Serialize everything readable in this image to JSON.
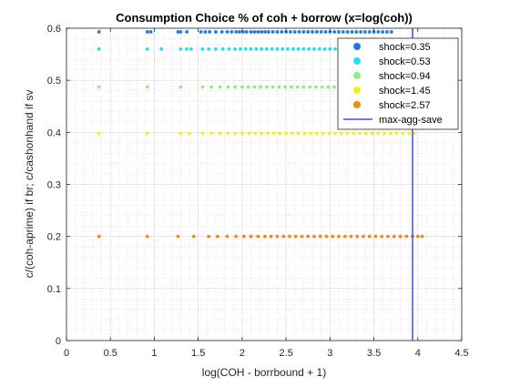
{
  "chart_data": {
    "type": "scatter",
    "title": "Consumption Choice % of coh + borrow (x=log(coh))",
    "xlabel": "log(COH - borrbound + 1)",
    "ylabel": "c/(coh-aprime) if br; c/cashonhand if sv",
    "xlim": [
      0,
      4.5
    ],
    "ylim": [
      0,
      0.6
    ],
    "xticks": [
      0,
      0.5,
      1,
      1.5,
      2,
      2.5,
      3,
      3.5,
      4,
      4.5
    ],
    "yticks": [
      0,
      0.1,
      0.2,
      0.3,
      0.4,
      0.5,
      0.6
    ],
    "xtick_labels": [
      "0",
      "0.5",
      "1",
      "1.5",
      "2",
      "2.5",
      "3",
      "3.5",
      "4",
      "4.5"
    ],
    "ytick_labels": [
      "0",
      "0.1",
      "0.2",
      "0.3",
      "0.4",
      "0.5",
      "0.6"
    ],
    "grid": "on (major and minor, dotted)",
    "legend_position": "top-right",
    "series": [
      {
        "name": "shock=0.35",
        "color": "#1f77e8",
        "y": 0.593,
        "x": [
          0.37,
          0.92,
          0.96,
          1.27,
          1.3,
          1.37,
          1.53,
          1.58,
          1.63,
          1.7,
          1.77,
          1.83,
          1.88,
          1.93,
          1.97,
          2.01,
          2.05,
          2.1,
          2.14,
          2.18,
          2.22,
          2.26,
          2.3,
          2.35,
          2.4,
          2.45,
          2.5,
          2.55,
          2.6,
          2.65,
          2.7,
          2.75,
          2.8,
          2.85,
          2.9,
          2.95,
          3.0,
          3.05,
          3.1,
          3.15,
          3.2,
          3.25,
          3.3,
          3.35,
          3.4,
          3.45,
          3.5,
          3.55,
          3.6,
          3.65,
          3.7
        ]
      },
      {
        "name": "shock=0.53",
        "color": "#20e0f0",
        "y": 0.56,
        "x": [
          0.37,
          0.92,
          1.08,
          1.3,
          1.37,
          1.42,
          1.55,
          1.62,
          1.7,
          1.78,
          1.85,
          1.92,
          1.98,
          2.04,
          2.1,
          2.16,
          2.22,
          2.28,
          2.34,
          2.4,
          2.46,
          2.52,
          2.58,
          2.64,
          2.7,
          2.76,
          2.82,
          2.88,
          2.94,
          3.0,
          3.06,
          3.12,
          3.18,
          3.24,
          3.3,
          3.36,
          3.42,
          3.48,
          3.54,
          3.6,
          3.66,
          3.72,
          3.78
        ]
      },
      {
        "name": "shock=0.94",
        "color": "#8ef07a",
        "y": 0.487,
        "x": [
          0.37,
          0.92,
          1.3,
          1.55,
          1.65,
          1.75,
          1.84,
          1.92,
          2.0,
          2.07,
          2.14,
          2.21,
          2.28,
          2.35,
          2.42,
          2.49,
          2.56,
          2.63,
          2.7,
          2.77,
          2.84,
          2.91,
          2.98,
          3.05,
          3.12,
          3.19,
          3.26,
          3.33,
          3.4,
          3.47,
          3.54,
          3.61,
          3.68,
          3.75,
          3.82,
          3.88
        ]
      },
      {
        "name": "shock=1.45",
        "color": "#f2f218",
        "y": 0.398,
        "x": [
          0.37,
          0.92,
          1.3,
          1.4,
          1.55,
          1.65,
          1.75,
          1.84,
          1.92,
          2.0,
          2.08,
          2.15,
          2.22,
          2.29,
          2.36,
          2.43,
          2.5,
          2.57,
          2.64,
          2.71,
          2.78,
          2.85,
          2.92,
          2.99,
          3.06,
          3.13,
          3.2,
          3.27,
          3.34,
          3.41,
          3.48,
          3.55,
          3.62,
          3.69,
          3.76,
          3.83,
          3.9,
          3.96
        ]
      },
      {
        "name": "shock=2.57",
        "color": "#f28a1a",
        "y": 0.2,
        "x": [
          0.37,
          0.92,
          1.27,
          1.45,
          1.62,
          1.72,
          1.83,
          1.93,
          2.02,
          2.1,
          2.18,
          2.26,
          2.33,
          2.4,
          2.47,
          2.54,
          2.61,
          2.68,
          2.75,
          2.82,
          2.89,
          2.96,
          3.03,
          3.1,
          3.17,
          3.24,
          3.31,
          3.38,
          3.45,
          3.52,
          3.59,
          3.66,
          3.73,
          3.8,
          3.87,
          3.94,
          4.0,
          4.05
        ]
      }
    ],
    "vline": {
      "name": "max-agg-save",
      "x": 3.94,
      "color": "#3f4fe0"
    }
  }
}
